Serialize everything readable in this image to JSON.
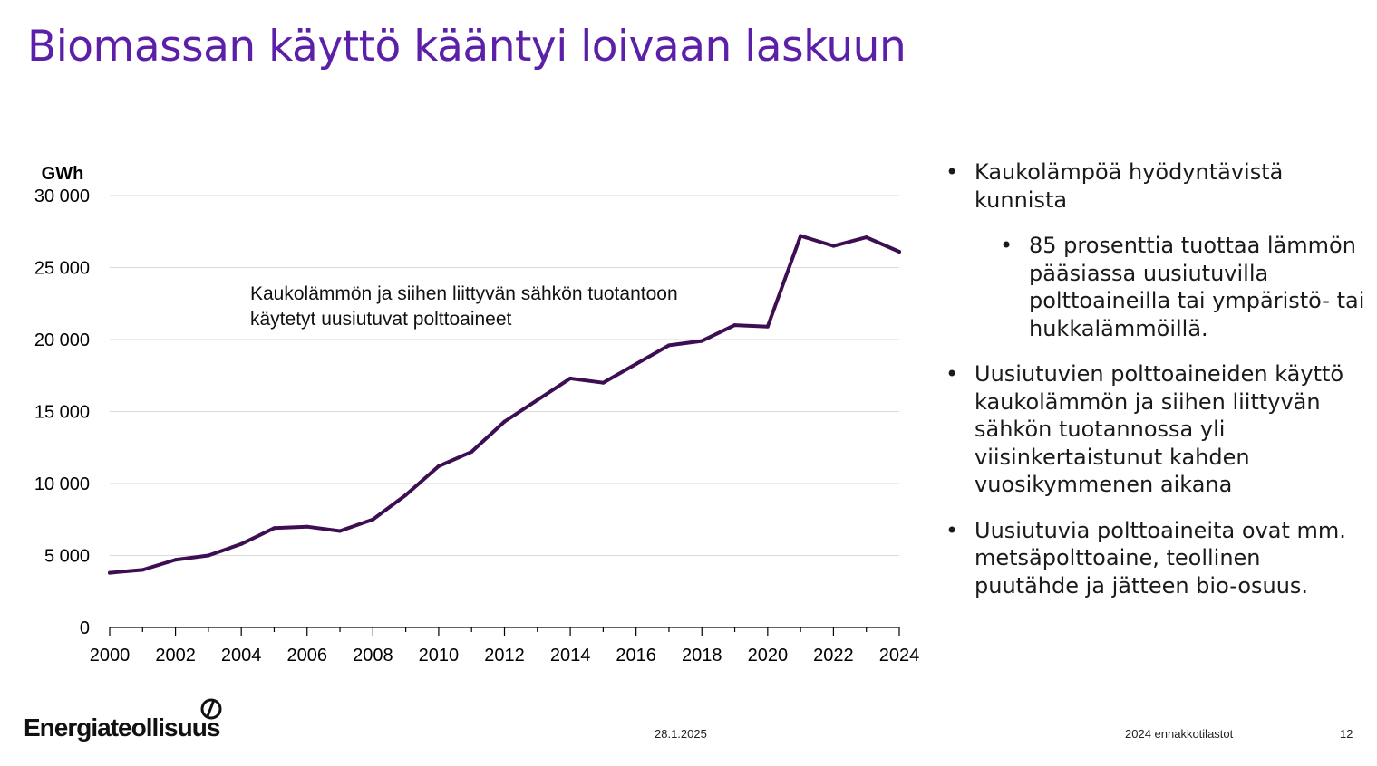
{
  "slide": {
    "title": "Biomassan käyttö kääntyi loivaan laskuun",
    "bullets": [
      {
        "level": 1,
        "text": "Kaukolämpöä hyödyntävistä kunnista"
      },
      {
        "level": 2,
        "text": "85 prosenttia tuottaa lämmön pääsiassa uusiutuvilla polttoaineilla tai ympäristö- tai hukkalämmöillä."
      },
      {
        "level": 1,
        "text": "Uusiutuvien polttoaineiden käyttö kaukolämmön ja siihen liittyvän sähkön tuotannossa yli viisinkertaistunut kahden vuosikymmenen aikana"
      },
      {
        "level": 1,
        "text": "Uusiutuvia polttoaineita ovat mm. metsäpolttoaine, teollinen puutähde ja jätteen bio-osuus."
      }
    ],
    "bullet_symbol": "•"
  },
  "footer": {
    "logo_text": "Energiateollisuus",
    "date": "28.1.2025",
    "source": "2024 ennakkotilastot",
    "page_number": "12"
  },
  "colors": {
    "title": "#5b1fa8",
    "line": "#3d0f52",
    "grid": "#d9d9d9",
    "axis": "#000000"
  },
  "chart_data": {
    "type": "line",
    "title": "",
    "unit_label": "GWh",
    "annotation": [
      "Kaukolämmön ja siihen liittyvän sähkön tuotantoon",
      "käytetyt uusiutuvat polttoaineet"
    ],
    "x": [
      2000,
      2001,
      2002,
      2003,
      2004,
      2005,
      2006,
      2007,
      2008,
      2009,
      2010,
      2011,
      2012,
      2013,
      2014,
      2015,
      2016,
      2017,
      2018,
      2019,
      2020,
      2021,
      2022,
      2023,
      2024
    ],
    "series": [
      {
        "name": "Kaukolämmön ja siihen liittyvän sähkön tuotantoon käytetyt uusiutuvat polttoaineet",
        "values": [
          3800,
          4000,
          4700,
          5000,
          5800,
          6900,
          7000,
          6700,
          7500,
          9200,
          11200,
          12200,
          14300,
          15800,
          17300,
          17000,
          18300,
          19600,
          19900,
          21000,
          20900,
          27200,
          26500,
          27100,
          26100
        ]
      }
    ],
    "xlim": [
      2000,
      2024
    ],
    "ylim": [
      0,
      30000
    ],
    "x_ticks": [
      2000,
      2002,
      2004,
      2006,
      2008,
      2010,
      2012,
      2014,
      2016,
      2018,
      2020,
      2022,
      2024
    ],
    "y_ticks": [
      0,
      5000,
      10000,
      15000,
      20000,
      25000,
      30000
    ],
    "y_tick_labels": [
      "0",
      "5 000",
      "10 000",
      "15 000",
      "20 000",
      "25 000",
      "30 000"
    ],
    "grid": true
  }
}
